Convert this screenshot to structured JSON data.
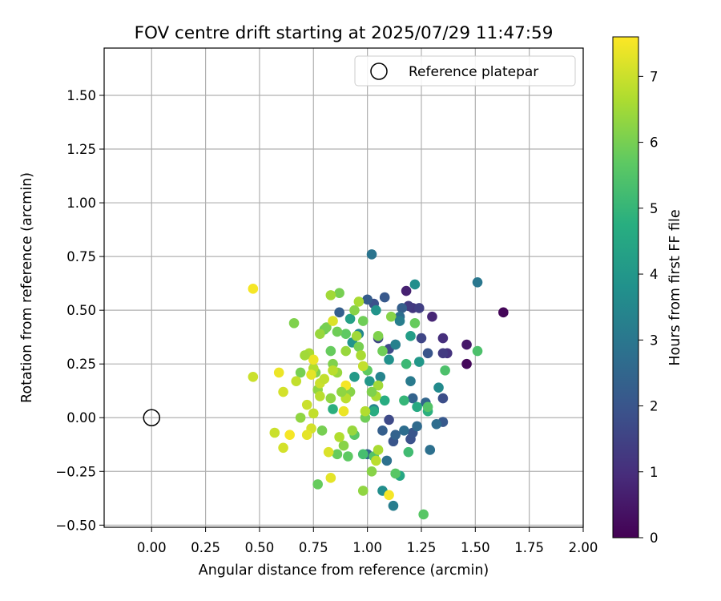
{
  "chart_data": {
    "type": "scatter",
    "title": "FOV centre drift starting at 2025/07/29 11:47:59",
    "xlabel": "Angular distance from reference (arcmin)",
    "ylabel": "Rotation from reference (arcmin)",
    "xlim": [
      -0.22,
      2.0
    ],
    "ylim": [
      -0.51,
      1.72
    ],
    "xticks": [
      "0.00",
      "0.25",
      "0.50",
      "0.75",
      "1.00",
      "1.25",
      "1.50",
      "1.75",
      "2.00"
    ],
    "yticks": [
      "−0.50",
      "−0.25",
      "0.00",
      "0.25",
      "0.50",
      "0.75",
      "1.00",
      "1.25",
      "1.50"
    ],
    "grid": true,
    "legend": {
      "position": "top-right",
      "entries": [
        "Reference platepar"
      ]
    },
    "reference_point": {
      "x": 0.0,
      "y": 0.0,
      "marker": "open-circle"
    },
    "colorbar": {
      "label": "Hours from first FF file",
      "min": 0,
      "max": 7.6,
      "ticks": [
        "0",
        "1",
        "2",
        "3",
        "4",
        "5",
        "6",
        "7"
      ],
      "colormap": "viridis"
    },
    "series": [
      {
        "color_by": "hours",
        "points": [
          [
            1.63,
            0.49,
            0.1
          ],
          [
            1.46,
            0.25,
            0.15
          ],
          [
            1.46,
            0.34,
            0.5
          ],
          [
            1.18,
            0.59,
            0.7
          ],
          [
            1.3,
            0.47,
            0.8
          ],
          [
            1.35,
            0.37,
            1.0
          ],
          [
            1.37,
            0.3,
            1.1
          ],
          [
            1.21,
            0.51,
            1.2
          ],
          [
            1.19,
            0.52,
            1.3
          ],
          [
            1.35,
            0.3,
            1.3
          ],
          [
            1.24,
            0.51,
            1.4
          ],
          [
            1.13,
            0.34,
            1.5
          ],
          [
            1.25,
            0.37,
            1.6
          ],
          [
            1.05,
            0.37,
            1.6
          ],
          [
            1.1,
            0.32,
            1.7
          ],
          [
            1.1,
            -0.01,
            1.7
          ],
          [
            1.35,
            0.09,
            1.8
          ],
          [
            1.2,
            -0.1,
            1.9
          ],
          [
            1.03,
            0.53,
            1.9
          ],
          [
            1.12,
            -0.11,
            2.0
          ],
          [
            1.28,
            0.3,
            2.0
          ],
          [
            1.21,
            -0.07,
            2.0
          ],
          [
            1.08,
            0.56,
            2.1
          ],
          [
            1.35,
            -0.02,
            2.1
          ],
          [
            1.0,
            0.55,
            2.2
          ],
          [
            0.87,
            0.49,
            2.3
          ],
          [
            1.16,
            0.51,
            2.3
          ],
          [
            1.07,
            -0.06,
            2.3
          ],
          [
            1.21,
            0.09,
            2.4
          ],
          [
            1.0,
            -0.17,
            2.5
          ],
          [
            1.27,
            0.07,
            2.5
          ],
          [
            1.23,
            -0.04,
            2.6
          ],
          [
            1.17,
            -0.06,
            2.7
          ],
          [
            1.15,
            0.47,
            2.7
          ],
          [
            1.09,
            -0.2,
            2.8
          ],
          [
            1.29,
            -0.15,
            2.8
          ],
          [
            1.02,
            0.76,
            2.9
          ],
          [
            1.51,
            0.63,
            3.0
          ],
          [
            1.2,
            0.17,
            3.1
          ],
          [
            1.12,
            -0.41,
            3.2
          ],
          [
            1.13,
            0.34,
            3.3
          ],
          [
            1.06,
            0.19,
            3.4
          ],
          [
            1.03,
            0.04,
            3.4
          ],
          [
            0.96,
            0.39,
            3.5
          ],
          [
            1.33,
            0.14,
            3.6
          ],
          [
            1.22,
            0.62,
            3.7
          ],
          [
            1.07,
            -0.34,
            3.7
          ],
          [
            1.1,
            0.27,
            3.8
          ],
          [
            0.93,
            0.35,
            3.9
          ],
          [
            1.04,
            0.5,
            3.9
          ],
          [
            1.24,
            0.26,
            4.0
          ],
          [
            1.01,
            0.17,
            4.0
          ],
          [
            0.94,
            0.19,
            4.1
          ],
          [
            1.2,
            0.38,
            4.2
          ],
          [
            0.92,
            0.46,
            4.3
          ],
          [
            1.15,
            -0.27,
            4.5
          ],
          [
            1.23,
            0.05,
            4.6
          ],
          [
            1.03,
            0.03,
            4.7
          ],
          [
            1.08,
            0.08,
            4.7
          ],
          [
            0.84,
            0.04,
            4.8
          ],
          [
            1.28,
            0.03,
            4.8
          ],
          [
            1.17,
            0.08,
            5.0
          ],
          [
            1.18,
            0.25,
            5.1
          ],
          [
            1.19,
            -0.16,
            5.2
          ],
          [
            0.98,
            -0.17,
            5.3
          ],
          [
            1.51,
            0.31,
            5.4
          ],
          [
            1.36,
            0.22,
            5.4
          ],
          [
            1.28,
            0.05,
            5.5
          ],
          [
            1.03,
            -0.18,
            5.5
          ],
          [
            0.94,
            -0.08,
            5.6
          ],
          [
            1.13,
            -0.26,
            5.6
          ],
          [
            1.26,
            -0.45,
            5.6
          ],
          [
            1.0,
            0.22,
            5.7
          ],
          [
            0.91,
            -0.18,
            5.7
          ],
          [
            0.9,
            0.39,
            5.7
          ],
          [
            0.86,
            -0.17,
            5.8
          ],
          [
            0.83,
            0.31,
            5.8
          ],
          [
            0.8,
            0.41,
            5.8
          ],
          [
            0.77,
            -0.31,
            5.8
          ],
          [
            1.22,
            0.44,
            5.8
          ],
          [
            0.98,
            0.45,
            5.9
          ],
          [
            0.86,
            0.4,
            5.9
          ],
          [
            0.99,
            0.0,
            5.9
          ],
          [
            0.87,
            0.58,
            6.0
          ],
          [
            0.96,
            0.33,
            6.0
          ],
          [
            0.81,
            0.42,
            6.0
          ],
          [
            0.79,
            -0.06,
            6.0
          ],
          [
            0.69,
            0.21,
            6.0
          ],
          [
            0.84,
            0.25,
            6.1
          ],
          [
            1.05,
            0.38,
            6.1
          ],
          [
            0.76,
            0.21,
            6.1
          ],
          [
            0.66,
            0.44,
            6.1
          ],
          [
            0.89,
            -0.13,
            6.2
          ],
          [
            0.92,
            0.12,
            6.2
          ],
          [
            0.94,
            0.5,
            6.2
          ],
          [
            1.02,
            -0.25,
            6.2
          ],
          [
            0.77,
            0.13,
            6.3
          ],
          [
            0.98,
            -0.34,
            6.3
          ],
          [
            0.69,
            0.0,
            6.3
          ],
          [
            0.83,
            0.09,
            6.3
          ],
          [
            0.78,
            0.39,
            6.4
          ],
          [
            0.93,
            -0.06,
            6.4
          ],
          [
            0.9,
            0.31,
            6.4
          ],
          [
            0.86,
            0.21,
            6.4
          ],
          [
            0.83,
            0.57,
            6.5
          ],
          [
            0.95,
            0.38,
            6.5
          ],
          [
            0.97,
            0.29,
            6.6
          ],
          [
            1.04,
            0.1,
            6.6
          ],
          [
            0.73,
            0.3,
            6.6
          ],
          [
            0.96,
            0.54,
            6.6
          ],
          [
            0.99,
            0.03,
            6.7
          ],
          [
            0.87,
            -0.09,
            6.7
          ],
          [
            0.75,
            0.23,
            6.7
          ],
          [
            0.78,
            0.1,
            6.8
          ],
          [
            1.04,
            -0.2,
            6.8
          ],
          [
            0.84,
            0.22,
            6.8
          ],
          [
            0.67,
            0.17,
            6.9
          ],
          [
            0.75,
            0.02,
            6.9
          ],
          [
            0.72,
            0.06,
            7.0
          ],
          [
            0.47,
            0.19,
            7.0
          ],
          [
            0.57,
            -0.07,
            7.0
          ],
          [
            0.61,
            0.12,
            7.1
          ],
          [
            0.61,
            -0.14,
            7.1
          ],
          [
            0.74,
            -0.05,
            7.1
          ],
          [
            0.82,
            -0.16,
            7.2
          ],
          [
            0.84,
            0.45,
            7.2
          ],
          [
            0.72,
            -0.08,
            7.3
          ],
          [
            0.83,
            -0.28,
            7.3
          ],
          [
            0.74,
            0.2,
            7.3
          ],
          [
            0.75,
            0.27,
            7.4
          ],
          [
            0.89,
            0.03,
            7.4
          ],
          [
            0.59,
            0.21,
            7.4
          ],
          [
            0.47,
            0.6,
            7.5
          ],
          [
            0.64,
            -0.08,
            7.5
          ],
          [
            1.1,
            -0.36,
            7.5
          ],
          [
            0.9,
            0.15,
            7.5
          ],
          [
            0.78,
            0.16,
            7.0
          ],
          [
            0.98,
            0.24,
            6.9
          ],
          [
            1.05,
            0.15,
            6.5
          ],
          [
            0.9,
            0.09,
            6.8
          ],
          [
            1.11,
            0.47,
            6.2
          ],
          [
            1.07,
            0.31,
            5.9
          ],
          [
            1.15,
            0.45,
            3.2
          ],
          [
            1.13,
            -0.08,
            2.4
          ],
          [
            1.32,
            -0.03,
            2.7
          ],
          [
            0.71,
            0.29,
            6.5
          ],
          [
            0.8,
            0.18,
            6.9
          ],
          [
            0.88,
            0.12,
            6.3
          ],
          [
            1.02,
            0.12,
            6.1
          ],
          [
            1.05,
            -0.15,
            6.6
          ]
        ]
      }
    ]
  }
}
